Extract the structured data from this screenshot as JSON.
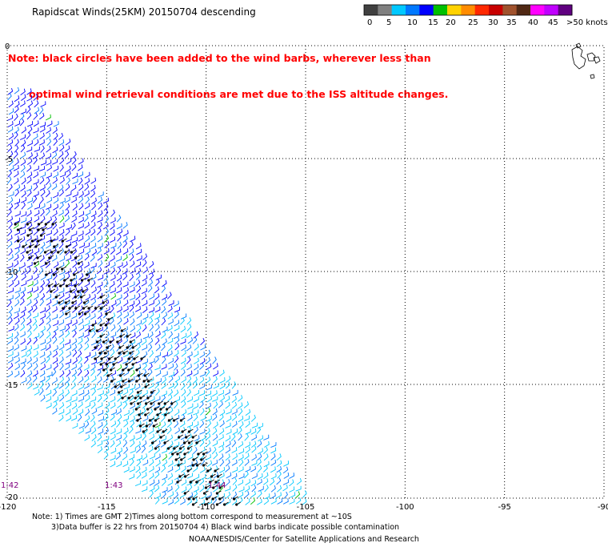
{
  "title": "Rapidscat Winds(25KM) 20150704 descending",
  "note_lines": [
    "Note: black circles have been added to the wind barbs, wherever less than",
    "      optimal wind retrieval conditions are met due to the ISS altitude changes."
  ],
  "legend": {
    "labels": [
      "0",
      "5",
      "10",
      "15",
      "20",
      "25",
      "30",
      "35",
      "40",
      "45",
      ">50 knots"
    ],
    "colors": [
      "#404040",
      "#808080",
      "#00c8ff",
      "#0078ff",
      "#0000ff",
      "#00c000",
      "#ffd200",
      "#ff8c00",
      "#ff2800",
      "#c80000",
      "#a0522d",
      "#502814",
      "#ff00ff",
      "#c000ff",
      "#600080"
    ]
  },
  "axes": {
    "lon_labels": [
      "-120",
      "-115",
      "-110",
      "-105",
      "-100",
      "-95",
      "-90"
    ],
    "lat_labels": [
      "0",
      "-5",
      "-10",
      "-15",
      "-20"
    ]
  },
  "times": [
    "1:42",
    "1:43",
    "1:44"
  ],
  "footer": {
    "line1": "Note: 1) Times are GMT 2)Times along bottom correspond to measurement at ~10S",
    "line2": "3)Data buffer is 22 hrs from 20150704 4) Black wind barbs indicate possible contamination",
    "line3": "NOAA/NESDIS/Center for Satellite Applications and Research"
  }
}
